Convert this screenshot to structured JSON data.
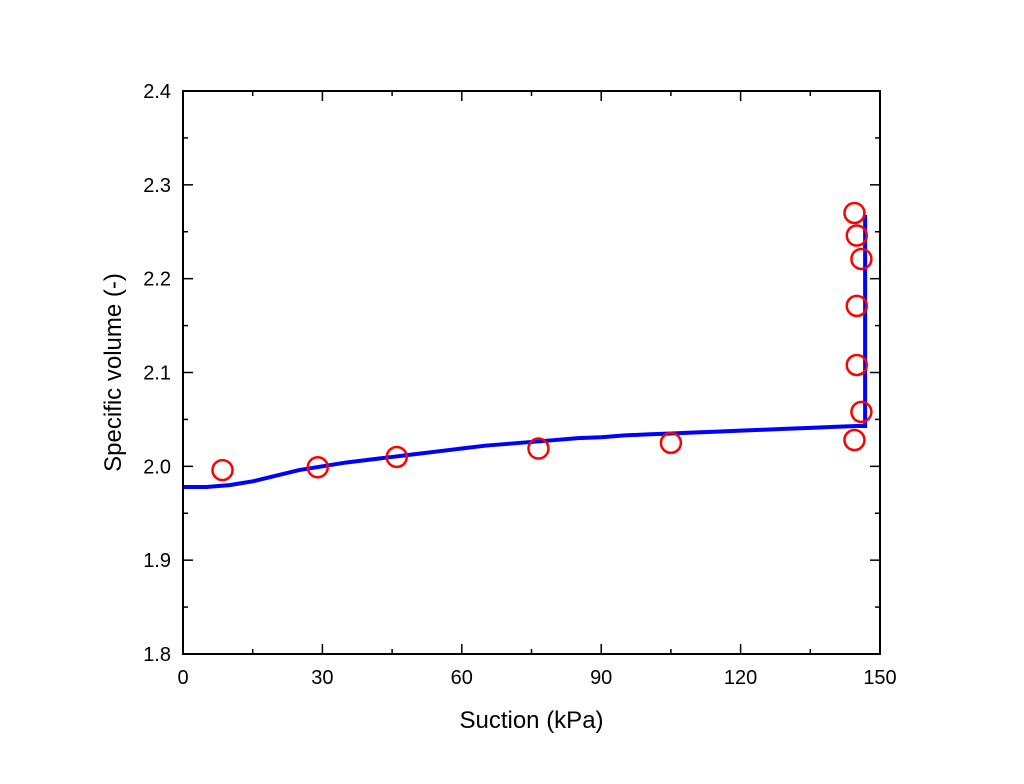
{
  "chart_data": {
    "type": "scatter",
    "title": "",
    "xlabel": "Suction (kPa)",
    "ylabel": "Specific volume (-)",
    "xlim": [
      0,
      150
    ],
    "ylim": [
      1.8,
      2.4
    ],
    "x_ticks": [
      0,
      30,
      60,
      90,
      120,
      150
    ],
    "x_tick_labels": [
      "0",
      "30",
      "60",
      "90",
      "120",
      "150"
    ],
    "y_ticks": [
      1.8,
      1.9,
      2.0,
      2.1,
      2.2,
      2.3,
      2.4
    ],
    "y_tick_labels": [
      "1.8",
      "1.9",
      "2.0",
      "2.1",
      "2.2",
      "2.3",
      "2.4"
    ],
    "grid": false,
    "legend": "none",
    "series": [
      {
        "kind": "points",
        "marker": "open-circle",
        "color": "#ff0000",
        "x": [
          8.5,
          29,
          46,
          76.5,
          105,
          144.5,
          144.5,
          145,
          145,
          146,
          145,
          146
        ],
        "y": [
          1.996,
          1.999,
          2.01,
          2.019,
          2.025,
          2.028,
          2.27,
          2.246,
          2.171,
          2.221,
          2.108,
          2.058
        ]
      },
      {
        "kind": "line",
        "color": "#0000ff",
        "x": [
          0,
          5,
          10,
          15,
          20,
          25,
          30,
          35,
          40,
          45,
          50,
          55,
          60,
          65,
          70,
          75,
          80,
          85,
          90,
          95,
          100,
          105,
          110,
          115,
          120,
          125,
          130,
          135,
          140,
          145,
          146.8,
          146.8
        ],
        "y": [
          1.978,
          1.978,
          1.98,
          1.984,
          1.99,
          1.996,
          2.0,
          2.004,
          2.007,
          2.01,
          2.013,
          2.016,
          2.019,
          2.022,
          2.024,
          2.026,
          2.028,
          2.03,
          2.031,
          2.033,
          2.034,
          2.035,
          2.036,
          2.037,
          2.038,
          2.039,
          2.04,
          2.041,
          2.042,
          2.043,
          2.043,
          2.268
        ]
      }
    ]
  }
}
